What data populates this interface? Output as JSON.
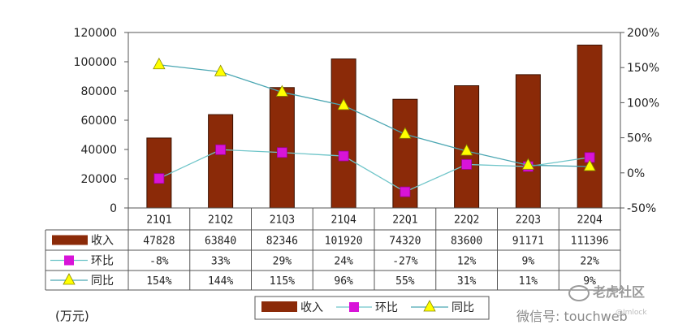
{
  "chart_data": {
    "type": "bar",
    "categories": [
      "21Q1",
      "21Q2",
      "21Q3",
      "21Q4",
      "22Q1",
      "22Q2",
      "22Q3",
      "22Q4"
    ],
    "y_left": {
      "min": 0,
      "max": 120000,
      "ticks": [
        "0",
        "20000",
        "40000",
        "60000",
        "80000",
        "100000",
        "120000"
      ]
    },
    "y_right": {
      "min": -50,
      "max": 200,
      "ticks": [
        "-50%",
        "0%",
        "50%",
        "100%",
        "150%",
        "200%"
      ]
    },
    "unit_label": "(万元)",
    "series": [
      {
        "name": "收入",
        "type": "bar",
        "axis": "left",
        "color": "#8b2a08",
        "values": [
          47828,
          63840,
          82346,
          101920,
          74320,
          83600,
          91171,
          111396
        ],
        "labels": [
          "47828",
          "63840",
          "82346",
          "101920",
          "74320",
          "83600",
          "91171",
          "111396"
        ]
      },
      {
        "name": "环比",
        "type": "line",
        "axis": "right",
        "marker": "square",
        "color": "#d814d8",
        "line_color": "#6fc5c9",
        "values": [
          -8,
          33,
          29,
          24,
          -27,
          12,
          9,
          22
        ],
        "labels": [
          "-8%",
          "33%",
          "29%",
          "24%",
          "-27%",
          "12%",
          "9%",
          "22%"
        ]
      },
      {
        "name": "同比",
        "type": "line",
        "axis": "right",
        "marker": "triangle",
        "color": "#ffff00",
        "line_color": "#4aa6b2",
        "values": [
          154,
          144,
          115,
          96,
          55,
          31,
          11,
          9
        ],
        "labels": [
          "154%",
          "144%",
          "115%",
          "96%",
          "55%",
          "31%",
          "11%",
          "9%"
        ]
      }
    ]
  },
  "watermark": {
    "main": "老虎社区",
    "sub": "微信号: touchweb",
    "small": "@Jmlock"
  }
}
